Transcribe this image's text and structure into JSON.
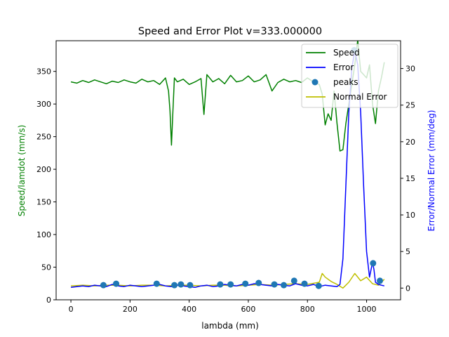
{
  "chart_data": {
    "type": "line",
    "title": "Speed and Error Plot v=333.000000",
    "xlabel": "lambda (mm)",
    "ylabel_left": "Speed/lamdot (mm/s)",
    "ylabel_right": "Error/Normal Error (mm/deg)",
    "xlim": [
      -50,
      1115
    ],
    "ylim_left": [
      0,
      397
    ],
    "ylim_right": [
      -1.6,
      33.8
    ],
    "xticks": [
      0,
      200,
      400,
      600,
      800,
      1000
    ],
    "yticks_left": [
      0,
      50,
      100,
      150,
      200,
      250,
      300,
      350
    ],
    "yticks_right": [
      0,
      5,
      10,
      15,
      20,
      25,
      30
    ],
    "legend_position": "top-right",
    "grid": false,
    "colors": {
      "speed": "#008000",
      "error": "#0000ff",
      "peaks": "#1f77b4",
      "normal_error": "#bfbf00",
      "left_label": "#008000",
      "right_label": "#0000ff"
    },
    "series": [
      {
        "name": "Speed",
        "axis": "left",
        "x": [
          0,
          20,
          40,
          60,
          80,
          100,
          120,
          140,
          160,
          180,
          200,
          220,
          240,
          260,
          280,
          300,
          320,
          330,
          335,
          340,
          345,
          350,
          360,
          380,
          400,
          420,
          440,
          450,
          460,
          480,
          500,
          520,
          540,
          560,
          580,
          600,
          620,
          640,
          660,
          680,
          700,
          720,
          740,
          760,
          780,
          800,
          820,
          840,
          850,
          860,
          870,
          880,
          890,
          900,
          910,
          920,
          930,
          940,
          950,
          960,
          970,
          980,
          990,
          1000,
          1010,
          1020,
          1030,
          1040,
          1050,
          1060
        ],
        "values": [
          334,
          332,
          336,
          333,
          337,
          334,
          331,
          335,
          333,
          337,
          334,
          332,
          338,
          334,
          336,
          330,
          340,
          320,
          290,
          237,
          290,
          340,
          334,
          338,
          330,
          334,
          339,
          284,
          345,
          334,
          339,
          331,
          344,
          334,
          336,
          343,
          334,
          337,
          345,
          320,
          333,
          338,
          334,
          336,
          333,
          340,
          334,
          330,
          315,
          268,
          285,
          275,
          320,
          270,
          228,
          230,
          270,
          300,
          330,
          360,
          398,
          350,
          345,
          340,
          360,
          300,
          270,
          320,
          340,
          364
        ]
      },
      {
        "name": "Error",
        "axis": "right",
        "x": [
          0,
          20,
          40,
          60,
          80,
          100,
          120,
          140,
          160,
          180,
          200,
          220,
          240,
          260,
          280,
          300,
          320,
          340,
          360,
          380,
          400,
          420,
          440,
          460,
          480,
          500,
          520,
          540,
          560,
          580,
          600,
          620,
          640,
          660,
          680,
          700,
          720,
          740,
          760,
          780,
          800,
          820,
          840,
          860,
          880,
          900,
          910,
          920,
          930,
          940,
          950,
          960,
          970,
          980,
          990,
          1000,
          1010,
          1020,
          1025,
          1030,
          1040,
          1050,
          1060
        ],
        "values": [
          0.1,
          0.2,
          0.3,
          0.2,
          0.4,
          0.3,
          0.2,
          0.5,
          0.3,
          0.2,
          0.4,
          0.3,
          0.2,
          0.3,
          0.4,
          0.5,
          0.3,
          0.2,
          0.4,
          0.3,
          0.2,
          0.1,
          0.3,
          0.4,
          0.2,
          0.3,
          0.5,
          0.4,
          0.3,
          0.5,
          0.4,
          0.6,
          0.5,
          0.4,
          0.3,
          0.5,
          0.4,
          0.3,
          0.6,
          0.4,
          0.3,
          0.5,
          0.2,
          0.4,
          0.3,
          0.2,
          0.5,
          4.0,
          14.0,
          24.0,
          30.0,
          32.5,
          30.5,
          24.0,
          14.0,
          5.0,
          1.5,
          3.5,
          2.5,
          0.8,
          0.5,
          0.4,
          0.3
        ]
      },
      {
        "name": "Normal Error",
        "axis": "right",
        "x": [
          0,
          40,
          80,
          120,
          160,
          200,
          240,
          280,
          320,
          360,
          400,
          440,
          480,
          520,
          560,
          600,
          640,
          680,
          720,
          760,
          800,
          840,
          850,
          860,
          880,
          900,
          920,
          940,
          960,
          980,
          1000,
          1020,
          1040,
          1060
        ],
        "values": [
          0.3,
          0.4,
          0.3,
          0.4,
          0.4,
          0.3,
          0.4,
          0.4,
          0.3,
          0.4,
          0.4,
          0.3,
          0.4,
          0.4,
          0.3,
          0.4,
          0.5,
          0.4,
          0.5,
          0.6,
          0.5,
          0.8,
          2.0,
          1.5,
          0.9,
          0.5,
          0.0,
          0.8,
          2.0,
          1.0,
          1.5,
          0.6,
          0.4,
          1.2
        ]
      },
      {
        "name": "peaks",
        "axis": "right",
        "kind": "scatter",
        "x": [
          110,
          153,
          290,
          350,
          372,
          403,
          505,
          540,
          590,
          635,
          688,
          720,
          755,
          790,
          838,
          958,
          1022,
          1045
        ],
        "values": [
          0.4,
          0.6,
          0.6,
          0.4,
          0.5,
          0.4,
          0.5,
          0.5,
          0.6,
          0.7,
          0.5,
          0.4,
          1.0,
          0.6,
          0.3,
          32.5,
          3.4,
          1.0
        ]
      }
    ]
  }
}
